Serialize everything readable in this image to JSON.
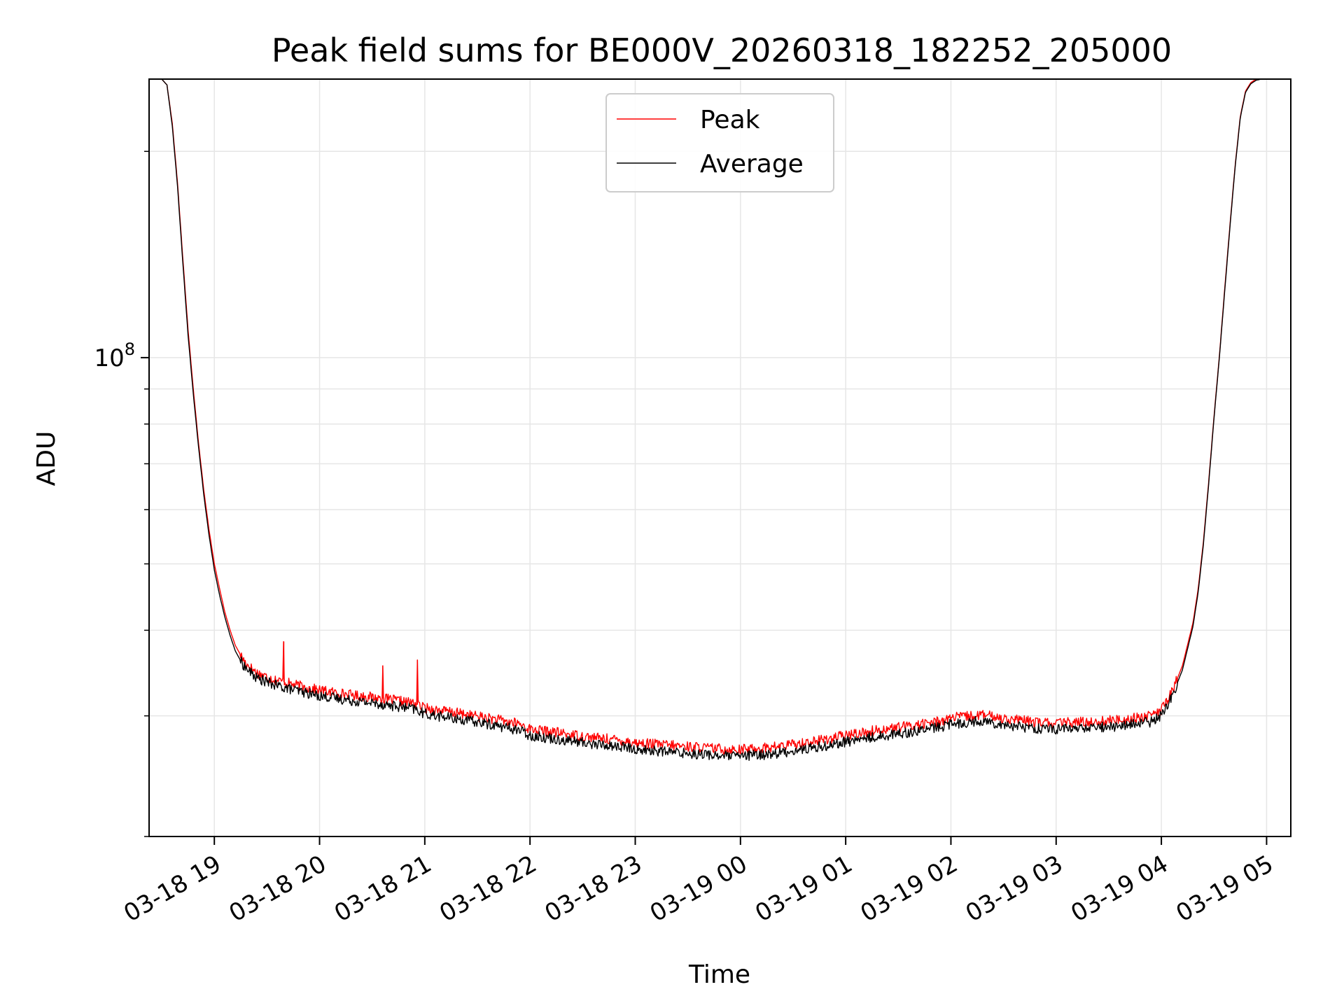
{
  "chart_data": {
    "type": "line",
    "title": "Peak field sums for BE000V_20260318_182252_205000",
    "xlabel": "Time",
    "ylabel": "ADU",
    "yscale": "log",
    "ylim": [
      20000000,
      255000000
    ],
    "xlim_hours": [
      18.38,
      29.23
    ],
    "x_ticks": [
      {
        "hour": 19,
        "label": "03-18 19"
      },
      {
        "hour": 20,
        "label": "03-18 20"
      },
      {
        "hour": 21,
        "label": "03-18 21"
      },
      {
        "hour": 22,
        "label": "03-18 22"
      },
      {
        "hour": 23,
        "label": "03-18 23"
      },
      {
        "hour": 24,
        "label": "03-19 00"
      },
      {
        "hour": 25,
        "label": "03-19 01"
      },
      {
        "hour": 26,
        "label": "03-19 02"
      },
      {
        "hour": 27,
        "label": "03-19 03"
      },
      {
        "hour": 28,
        "label": "03-19 04"
      },
      {
        "hour": 29,
        "label": "03-19 05"
      }
    ],
    "y_major_tick": {
      "value": 100000000,
      "base": "10",
      "exponent": "8"
    },
    "y_minor_ticks": [
      20000000,
      30000000,
      40000000,
      50000000,
      60000000,
      70000000,
      80000000,
      90000000,
      200000000
    ],
    "grid": true,
    "legend_position": "top-center",
    "series": [
      {
        "name": "Peak",
        "color": "#ff0000",
        "x_hours": [
          18.5,
          18.55,
          18.6,
          18.65,
          18.7,
          18.75,
          18.8,
          18.85,
          18.9,
          18.95,
          19.0,
          19.05,
          19.1,
          19.15,
          19.2,
          19.25,
          19.3,
          19.4,
          19.5,
          19.6,
          19.7,
          19.8,
          20.0,
          20.3,
          20.6,
          20.9,
          21.0,
          21.3,
          21.6,
          21.9,
          22.0,
          22.3,
          22.6,
          22.9,
          23.0,
          23.3,
          23.6,
          23.9,
          24.0,
          24.3,
          24.6,
          24.9,
          25.0,
          25.3,
          25.6,
          25.9,
          26.0,
          26.3,
          26.6,
          26.9,
          27.0,
          27.3,
          27.6,
          27.9,
          28.0,
          28.1,
          28.2,
          28.3,
          28.35,
          28.4,
          28.45,
          28.5,
          28.55,
          28.6,
          28.65,
          28.7,
          28.75,
          28.8,
          28.85,
          28.9,
          28.95,
          29.0,
          29.1,
          29.22
        ],
        "values": [
          255000000,
          250000000,
          220000000,
          180000000,
          140000000,
          110000000,
          90000000,
          75000000,
          64000000,
          56000000,
          50000000,
          46000000,
          42500000,
          40000000,
          38000000,
          36800000,
          35800000,
          34700000,
          34200000,
          33800000,
          33500000,
          33200000,
          32700000,
          32200000,
          31800000,
          31300000,
          30800000,
          30300000,
          29800000,
          29200000,
          28700000,
          28300000,
          27900000,
          27600000,
          27400000,
          27200000,
          27000000,
          26800000,
          26800000,
          27000000,
          27400000,
          27900000,
          28100000,
          28600000,
          29000000,
          29500000,
          29800000,
          30100000,
          29600000,
          29300000,
          29300000,
          29400000,
          29600000,
          30000000,
          30600000,
          32500000,
          35500000,
          41000000,
          46000000,
          54000000,
          66000000,
          82000000,
          100000000,
          125000000,
          155000000,
          190000000,
          225000000,
          245000000,
          252000000,
          255000000,
          255000000,
          255000000,
          255000000,
          255000000
        ]
      },
      {
        "name": "Average",
        "color": "#000000",
        "x_hours": [
          18.5,
          18.55,
          18.6,
          18.65,
          18.7,
          18.75,
          18.8,
          18.85,
          18.9,
          18.95,
          19.0,
          19.05,
          19.1,
          19.15,
          19.2,
          19.25,
          19.3,
          19.4,
          19.5,
          19.6,
          19.7,
          19.8,
          20.0,
          20.3,
          20.6,
          20.9,
          21.0,
          21.3,
          21.6,
          21.9,
          22.0,
          22.3,
          22.6,
          22.9,
          23.0,
          23.3,
          23.6,
          23.9,
          24.0,
          24.3,
          24.6,
          24.9,
          25.0,
          25.3,
          25.6,
          25.9,
          26.0,
          26.3,
          26.6,
          26.9,
          27.0,
          27.3,
          27.6,
          27.9,
          28.0,
          28.1,
          28.2,
          28.3,
          28.35,
          28.4,
          28.45,
          28.5,
          28.55,
          28.6,
          28.65,
          28.7,
          28.75,
          28.8,
          28.85,
          28.9,
          28.95,
          29.0,
          29.1,
          29.22
        ],
        "values": [
          255000000,
          250000000,
          218000000,
          178000000,
          138000000,
          108000000,
          88500000,
          74000000,
          63000000,
          55000000,
          49000000,
          45000000,
          41800000,
          39300000,
          37300000,
          36100000,
          35200000,
          34100000,
          33600000,
          33200000,
          32900000,
          32600000,
          32100000,
          31600000,
          31200000,
          30700000,
          30200000,
          29700000,
          29200000,
          28600000,
          28100000,
          27700000,
          27300000,
          27000000,
          26800000,
          26600000,
          26400000,
          26200000,
          26200000,
          26400000,
          26800000,
          27300000,
          27500000,
          28000000,
          28400000,
          28900000,
          29200000,
          29500000,
          29000000,
          28700000,
          28700000,
          28800000,
          29000000,
          29400000,
          30000000,
          32000000,
          35000000,
          40500000,
          45500000,
          53500000,
          65500000,
          81500000,
          99500000,
          124000000,
          154000000,
          189000000,
          224000000,
          244000000,
          251000000,
          254000000,
          255000000,
          255000000,
          255000000,
          255000000
        ]
      }
    ],
    "spikes": [
      {
        "hour": 19.66,
        "value": 38500000
      },
      {
        "hour": 20.6,
        "value": 35500000
      },
      {
        "hour": 20.93,
        "value": 36200000
      }
    ]
  }
}
